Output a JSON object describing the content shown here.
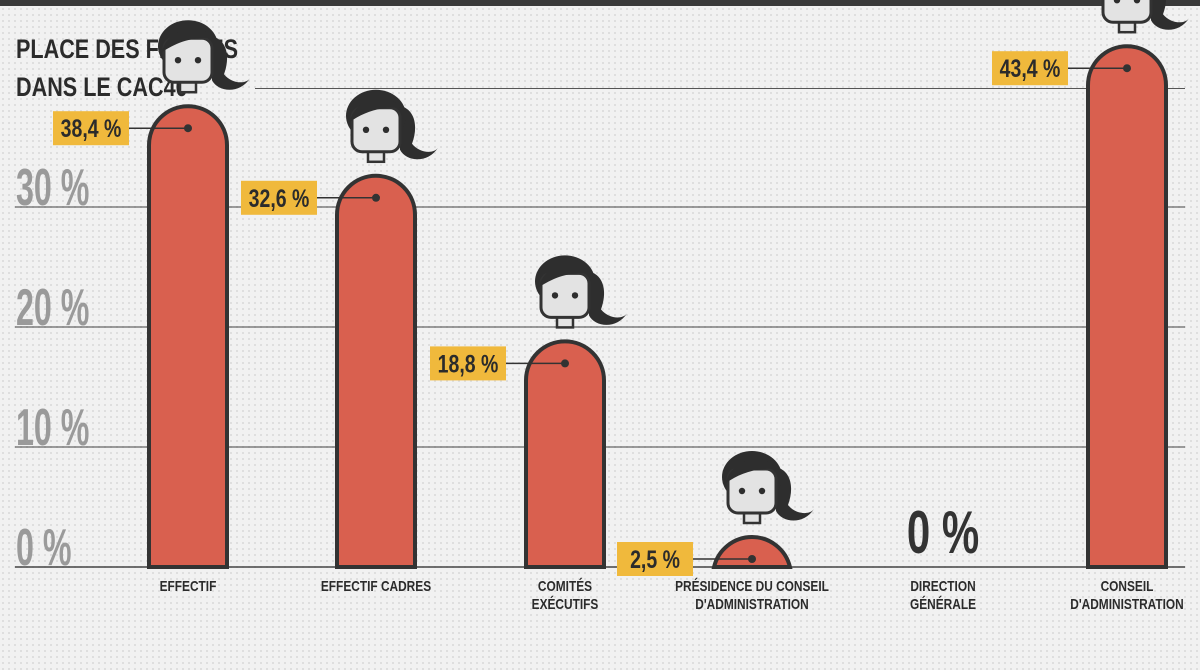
{
  "title_lines": [
    "PLACE DES FEMMES",
    "DANS LE CAC40"
  ],
  "colors": {
    "bar_fill": "#d9604f",
    "outline": "#333333",
    "label_bg": "#f0b93c",
    "label_text": "#2b2b2b",
    "tick_text": "#9a9a9a",
    "face": "#e3e3e3",
    "hair": "#2e2e2e"
  },
  "chart_data": {
    "type": "bar",
    "title": "PLACE DES FEMMES DANS LE CAC40",
    "categories": [
      [
        "EFFECTIF"
      ],
      [
        "EFFECTIF CADRES"
      ],
      [
        "COMITÉS",
        "EXÉCUTIFS"
      ],
      [
        "PRÉSIDENCE DU CONSEIL",
        "D'ADMINISTRATION"
      ],
      [
        "DIRECTION",
        "GÉNÉRALE"
      ],
      [
        "CONSEIL",
        "D'ADMINISTRATION"
      ]
    ],
    "values": [
      38.4,
      32.6,
      18.8,
      2.5,
      0,
      43.4
    ],
    "value_labels": [
      "38,4 %",
      "32,6 %",
      "18,8 %",
      "2,5 %",
      "0 %",
      "43,4 %"
    ],
    "y_ticks": [
      {
        "value": 0,
        "label": "0 %"
      },
      {
        "value": 10,
        "label": "10 %"
      },
      {
        "value": 20,
        "label": "20 %"
      },
      {
        "value": 30,
        "label": "30 %"
      }
    ],
    "ylim": [
      0,
      45
    ],
    "grid": true,
    "xlabel": "",
    "ylabel": "",
    "mark_style": "woman-figure bars"
  }
}
